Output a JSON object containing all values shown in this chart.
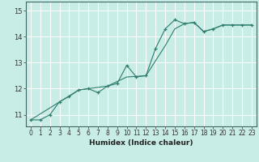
{
  "title": "",
  "xlabel": "Humidex (Indice chaleur)",
  "ylabel": "",
  "bg_color": "#c8ece6",
  "grid_color": "#ffffff",
  "line_color": "#2e7d6e",
  "marker": "+",
  "x_ticks": [
    0,
    1,
    2,
    3,
    4,
    5,
    6,
    7,
    8,
    9,
    10,
    11,
    12,
    13,
    14,
    15,
    16,
    17,
    18,
    19,
    20,
    21,
    22,
    23
  ],
  "y_ticks": [
    11,
    12,
    13,
    14,
    15
  ],
  "xlim": [
    -0.5,
    23.5
  ],
  "ylim": [
    10.55,
    15.35
  ],
  "series1_x": [
    0,
    1,
    2,
    3,
    4,
    5,
    6,
    7,
    8,
    9,
    10,
    11,
    12,
    13,
    14,
    15,
    16,
    17,
    18,
    19,
    20,
    21,
    22,
    23
  ],
  "series1_y": [
    10.8,
    10.8,
    11.0,
    11.5,
    11.7,
    11.95,
    12.0,
    11.85,
    12.1,
    12.2,
    12.9,
    12.45,
    12.5,
    13.55,
    14.3,
    14.65,
    14.5,
    14.55,
    14.2,
    14.3,
    14.45,
    14.45,
    14.45,
    14.45
  ],
  "series2_x": [
    0,
    5,
    8,
    10,
    12,
    14,
    15,
    16,
    17,
    18,
    19,
    20,
    21,
    22,
    23
  ],
  "series2_y": [
    10.8,
    11.95,
    12.1,
    12.45,
    12.5,
    13.65,
    14.3,
    14.5,
    14.55,
    14.2,
    14.3,
    14.45,
    14.45,
    14.45,
    14.45
  ],
  "xlabel_fontsize": 6.5,
  "tick_fontsize": 5.5
}
